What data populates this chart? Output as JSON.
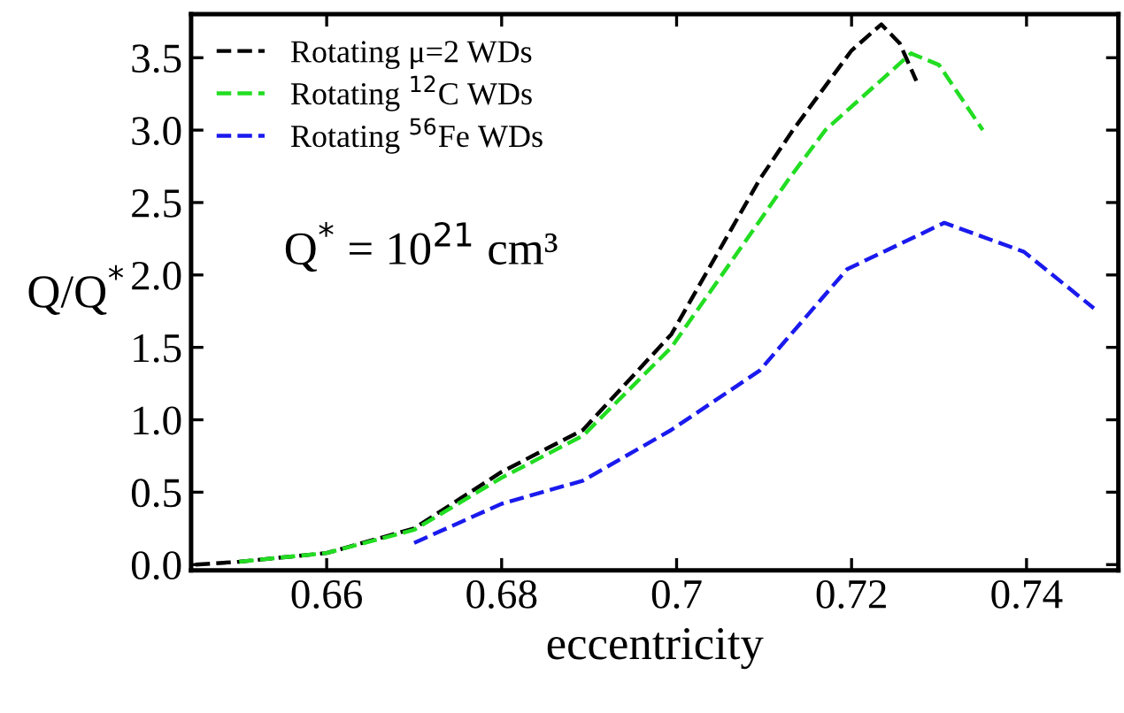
{
  "chart_data": {
    "type": "line",
    "xlabel": "eccentricity",
    "ylabel": "Q/Q$^{*}$",
    "annotations": [
      {
        "text": "Q$^{*}$ = 10$^{21}$ cm³"
      }
    ],
    "xlim": [
      0.6445,
      0.7505
    ],
    "ylim": [
      -0.04,
      3.8
    ],
    "xticks": [
      0.66,
      0.68,
      0.7,
      0.72,
      0.74
    ],
    "yticks": [
      {
        "value": 0,
        "label": "0.0"
      },
      {
        "value": 0.5,
        "label": "0.5"
      },
      {
        "value": 1,
        "label": "1.0"
      },
      {
        "value": 1.5,
        "label": "1.5"
      },
      {
        "value": 2,
        "label": "2.0"
      },
      {
        "value": 2.5,
        "label": "2.5"
      },
      {
        "value": 3,
        "label": "3.0"
      },
      {
        "value": 3.5,
        "label": "3.5"
      }
    ],
    "line_style": "dashed",
    "marker": "none",
    "grid": false,
    "legend": "top left",
    "series": [
      {
        "name": "Rotating μ=2 WDs",
        "color": "#000000",
        "x": [
          0.645,
          0.65,
          0.66,
          0.67,
          0.68,
          0.6893,
          0.6994,
          0.7095,
          0.7133,
          0.72,
          0.7234,
          0.7255,
          0.7274
        ],
        "values": [
          0.0,
          0.02,
          0.08,
          0.25,
          0.64,
          0.93,
          1.59,
          2.66,
          3.0,
          3.55,
          3.73,
          3.6,
          3.34
        ]
      },
      {
        "name": "Rotating $^{12}$C WDs",
        "color": "#22dd22",
        "x": [
          0.65,
          0.66,
          0.67,
          0.68,
          0.6893,
          0.6994,
          0.7128,
          0.717,
          0.7268,
          0.73,
          0.735
        ],
        "values": [
          0.02,
          0.08,
          0.24,
          0.6,
          0.89,
          1.5,
          2.66,
          3.0,
          3.53,
          3.45,
          3.0
        ]
      },
      {
        "name": "Rotating $^{56}$Fe WDs",
        "color": "#1a1aee",
        "x": [
          0.67,
          0.68,
          0.6893,
          0.6994,
          0.7095,
          0.7195,
          0.7306,
          0.7397,
          0.7477
        ],
        "values": [
          0.15,
          0.42,
          0.58,
          0.93,
          1.34,
          2.04,
          2.36,
          2.16,
          1.77
        ]
      }
    ]
  }
}
